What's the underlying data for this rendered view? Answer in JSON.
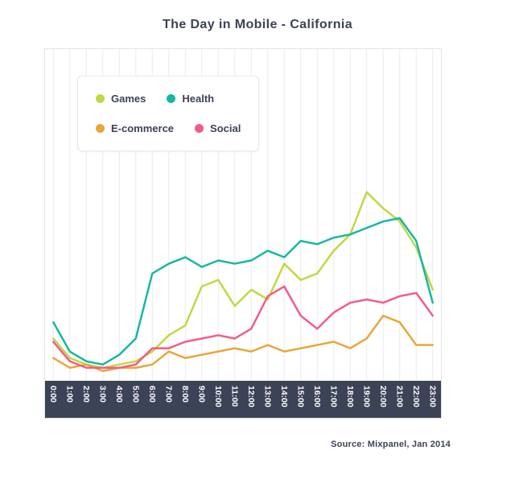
{
  "title": "The Day in Mobile - California",
  "source": "Source: Mixpanel, Jan 2014",
  "colors": {
    "games": "#c3d744",
    "health": "#17b8a2",
    "ecommerce": "#e8a63c",
    "social": "#f25d87",
    "axis_band": "#3d4357",
    "grid": "#ececec",
    "text": "#3d4357",
    "axis_label": "#ffffff"
  },
  "chart_data": {
    "type": "line",
    "x": [
      "0:00",
      "1:00",
      "2:00",
      "3:00",
      "4:00",
      "5:00",
      "6:00",
      "7:00",
      "8:00",
      "9:00",
      "10:00",
      "11:00",
      "12:00",
      "13:00",
      "14:00",
      "15:00",
      "16:00",
      "17:00",
      "18:00",
      "19:00",
      "20:00",
      "21:00",
      "22:00",
      "23:00"
    ],
    "series": [
      {
        "name": "Games",
        "color": "#c3d744",
        "values": [
          13,
          7,
          5,
          4,
          5,
          6,
          9,
          14,
          17,
          29,
          31,
          23,
          28,
          25,
          36,
          31,
          33,
          40,
          45,
          58,
          53,
          49,
          41,
          28
        ]
      },
      {
        "name": "Health",
        "color": "#17b8a2",
        "values": [
          18,
          9,
          6,
          5,
          8,
          13,
          33,
          36,
          38,
          35,
          37,
          36,
          37,
          40,
          38,
          43,
          42,
          44,
          45,
          47,
          49,
          50,
          43,
          24
        ]
      },
      {
        "name": "E-commerce",
        "color": "#e8a63c",
        "values": [
          7,
          4,
          5,
          3,
          4,
          4,
          5,
          9,
          7,
          8,
          9,
          10,
          9,
          11,
          9,
          10,
          11,
          12,
          10,
          13,
          20,
          18,
          11,
          11
        ]
      },
      {
        "name": "Social",
        "color": "#f25d87",
        "values": [
          12,
          6,
          4,
          4,
          4,
          5,
          10,
          10,
          12,
          13,
          14,
          13,
          16,
          26,
          29,
          20,
          16,
          21,
          24,
          25,
          24,
          26,
          27,
          20
        ]
      }
    ],
    "ylim": [
      0,
      100
    ],
    "grid": "vertical",
    "legend_position": "top-left",
    "x_label_rotation": 90
  }
}
